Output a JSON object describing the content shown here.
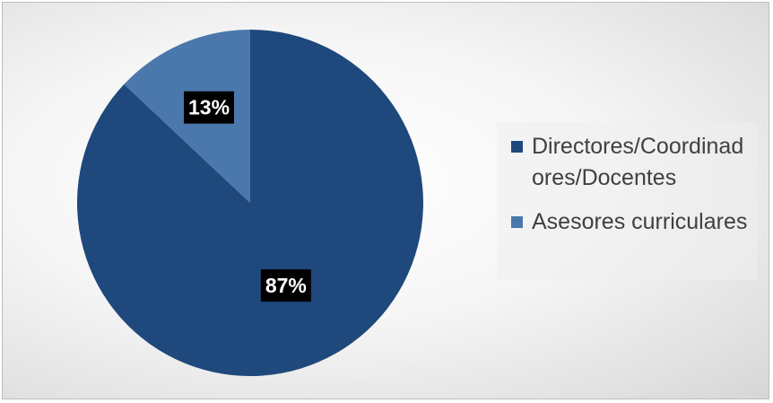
{
  "chart_data": {
    "type": "pie",
    "title": "",
    "categories": [
      "Directores/Coordinadores/Docentes",
      "Asesores curriculares"
    ],
    "values": [
      87,
      13
    ],
    "labels": [
      "87%",
      "13%"
    ],
    "colors": [
      "#1F487C",
      "#4A78AD"
    ],
    "legend_position": "right"
  },
  "legend": {
    "items": [
      {
        "label": "Directores/Coordinadores/Docentes",
        "color": "#1F487C"
      },
      {
        "label": "Asesores curriculares",
        "color": "#4A78AD"
      }
    ]
  }
}
